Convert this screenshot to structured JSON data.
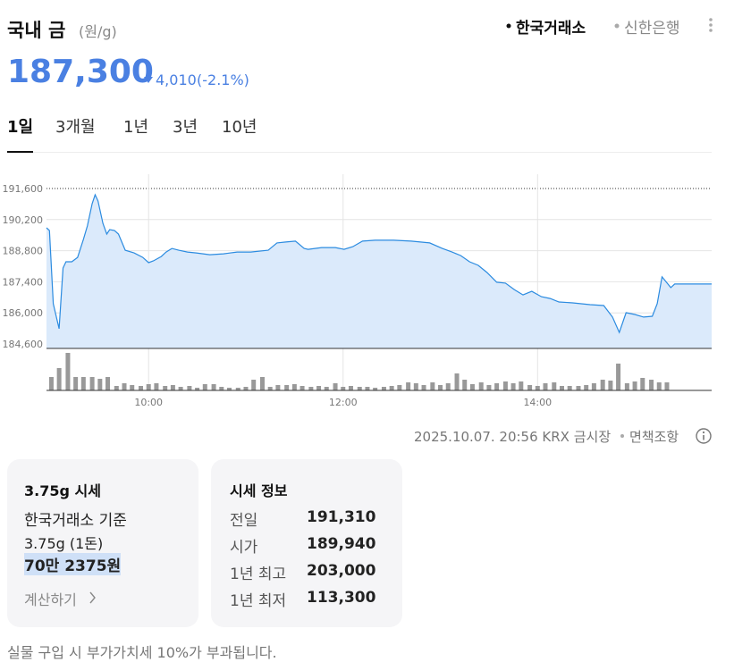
{
  "header": {
    "title": "국내 금",
    "unit": "(원/g)",
    "sources": [
      "한국거래소",
      "신한은행"
    ]
  },
  "price": {
    "value": "187,300",
    "change": "4,010",
    "change_pct": "(-2.1%)"
  },
  "periods": [
    "1일",
    "3개월",
    "1년",
    "3년",
    "10년"
  ],
  "chart_data": {
    "type": "area",
    "color": "#2b8be0",
    "fill": "#dbeafb",
    "grid": true,
    "x": [
      8.95,
      8.98,
      9.02,
      9.08,
      9.12,
      9.15,
      9.21,
      9.27,
      9.33,
      9.37,
      9.42,
      9.45,
      9.48,
      9.53,
      9.57,
      9.6,
      9.65,
      9.69,
      9.76,
      9.85,
      9.94,
      10.0,
      10.05,
      10.13,
      10.18,
      10.24,
      10.31,
      10.4,
      10.49,
      10.63,
      10.77,
      10.91,
      11.05,
      11.23,
      11.32,
      11.41,
      11.51,
      11.6,
      11.64,
      11.78,
      11.92,
      12.01,
      12.1,
      12.2,
      12.33,
      12.52,
      12.7,
      12.89,
      13.02,
      13.12,
      13.21,
      13.3,
      13.39,
      13.48,
      13.58,
      13.67,
      13.76,
      13.85,
      13.94,
      14.04,
      14.13,
      14.22,
      14.36,
      14.54,
      14.68,
      14.77,
      14.84,
      14.91,
      15.0,
      15.09,
      15.18,
      15.23,
      15.28,
      15.37,
      15.41,
      15.79
    ],
    "values": [
      189830,
      189710,
      186410,
      185290,
      188020,
      188300,
      188300,
      188500,
      189310,
      189910,
      190920,
      191320,
      191040,
      190030,
      189550,
      189750,
      189710,
      189550,
      188820,
      188700,
      188500,
      188260,
      188340,
      188540,
      188740,
      188900,
      188820,
      188740,
      188700,
      188620,
      188660,
      188740,
      188740,
      188820,
      189150,
      189190,
      189230,
      188900,
      188860,
      188940,
      188940,
      188860,
      188980,
      189230,
      189270,
      189270,
      189230,
      189150,
      188900,
      188740,
      188580,
      188300,
      188140,
      187820,
      187380,
      187340,
      187050,
      186810,
      186970,
      186730,
      186650,
      186490,
      186450,
      186370,
      186330,
      185810,
      185120,
      186010,
      185930,
      185810,
      185850,
      186410,
      187620,
      187140,
      187300,
      187300
    ],
    "xlim": [
      8.95,
      15.79
    ],
    "xticks": [
      {
        "value": 10,
        "label": "10:00"
      },
      {
        "value": 12,
        "label": "12:00"
      },
      {
        "value": 14,
        "label": "14:00"
      }
    ],
    "ylim": [
      184400,
      191600
    ],
    "yticks": [
      {
        "value": 184600,
        "label": "184,600"
      },
      {
        "value": 186000,
        "label": "186,000"
      },
      {
        "value": 187400,
        "label": "187,400"
      },
      {
        "value": 188800,
        "label": "188,800"
      },
      {
        "value": 190200,
        "label": "190,200"
      },
      {
        "value": 191600,
        "label": "191,600"
      }
    ],
    "volume": {
      "color": "#999999",
      "x": [
        9.0,
        9.08,
        9.17,
        9.25,
        9.33,
        9.42,
        9.5,
        9.58,
        9.67,
        9.75,
        9.83,
        9.92,
        10.0,
        10.08,
        10.17,
        10.25,
        10.33,
        10.42,
        10.5,
        10.58,
        10.67,
        10.75,
        10.83,
        10.92,
        11.0,
        11.08,
        11.17,
        11.25,
        11.33,
        11.42,
        11.5,
        11.58,
        11.67,
        11.75,
        11.83,
        11.92,
        12.0,
        12.08,
        12.17,
        12.25,
        12.33,
        12.42,
        12.5,
        12.58,
        12.67,
        12.75,
        12.83,
        12.92,
        13.0,
        13.08,
        13.17,
        13.25,
        13.33,
        13.42,
        13.5,
        13.58,
        13.67,
        13.75,
        13.83,
        13.92,
        14.0,
        14.08,
        14.17,
        14.25,
        14.33,
        14.42,
        14.5,
        14.58,
        14.67,
        14.75,
        14.83,
        14.92,
        15.0,
        15.08,
        15.17,
        15.25,
        15.33
      ],
      "values": [
        15,
        25,
        42,
        15,
        15,
        15,
        13,
        15,
        5,
        8,
        6,
        5,
        7,
        8,
        5,
        6,
        4,
        5,
        3,
        7,
        7,
        4,
        3,
        3,
        4,
        12,
        15,
        4,
        6,
        6,
        7,
        5,
        4,
        5,
        4,
        8,
        4,
        5,
        4,
        4,
        3,
        4,
        5,
        6,
        9,
        8,
        6,
        9,
        6,
        8,
        19,
        12,
        7,
        9,
        6,
        8,
        10,
        8,
        10,
        6,
        5,
        8,
        9,
        5,
        5,
        5,
        6,
        8,
        12,
        11,
        30,
        8,
        10,
        14,
        12,
        9,
        9
      ]
    }
  },
  "meta": {
    "timestamp": "2025.10.07. 20:56 KRX 금시장",
    "disclaimer": "면책조항"
  },
  "card_price": {
    "title": "3.75g 시세",
    "basis": "한국거래소 기준",
    "weight": "3.75g (1돈)",
    "amount": "70만 2375원",
    "action": "계산하기"
  },
  "card_info": {
    "title": "시세 정보",
    "rows": [
      [
        "전일",
        "191,310"
      ],
      [
        "시가",
        "189,940"
      ],
      [
        "1년 최고",
        "203,000"
      ],
      [
        "1년 최저",
        "113,300"
      ]
    ]
  },
  "note": "실물 구입 시 부가가치세 10%가 부과됩니다."
}
